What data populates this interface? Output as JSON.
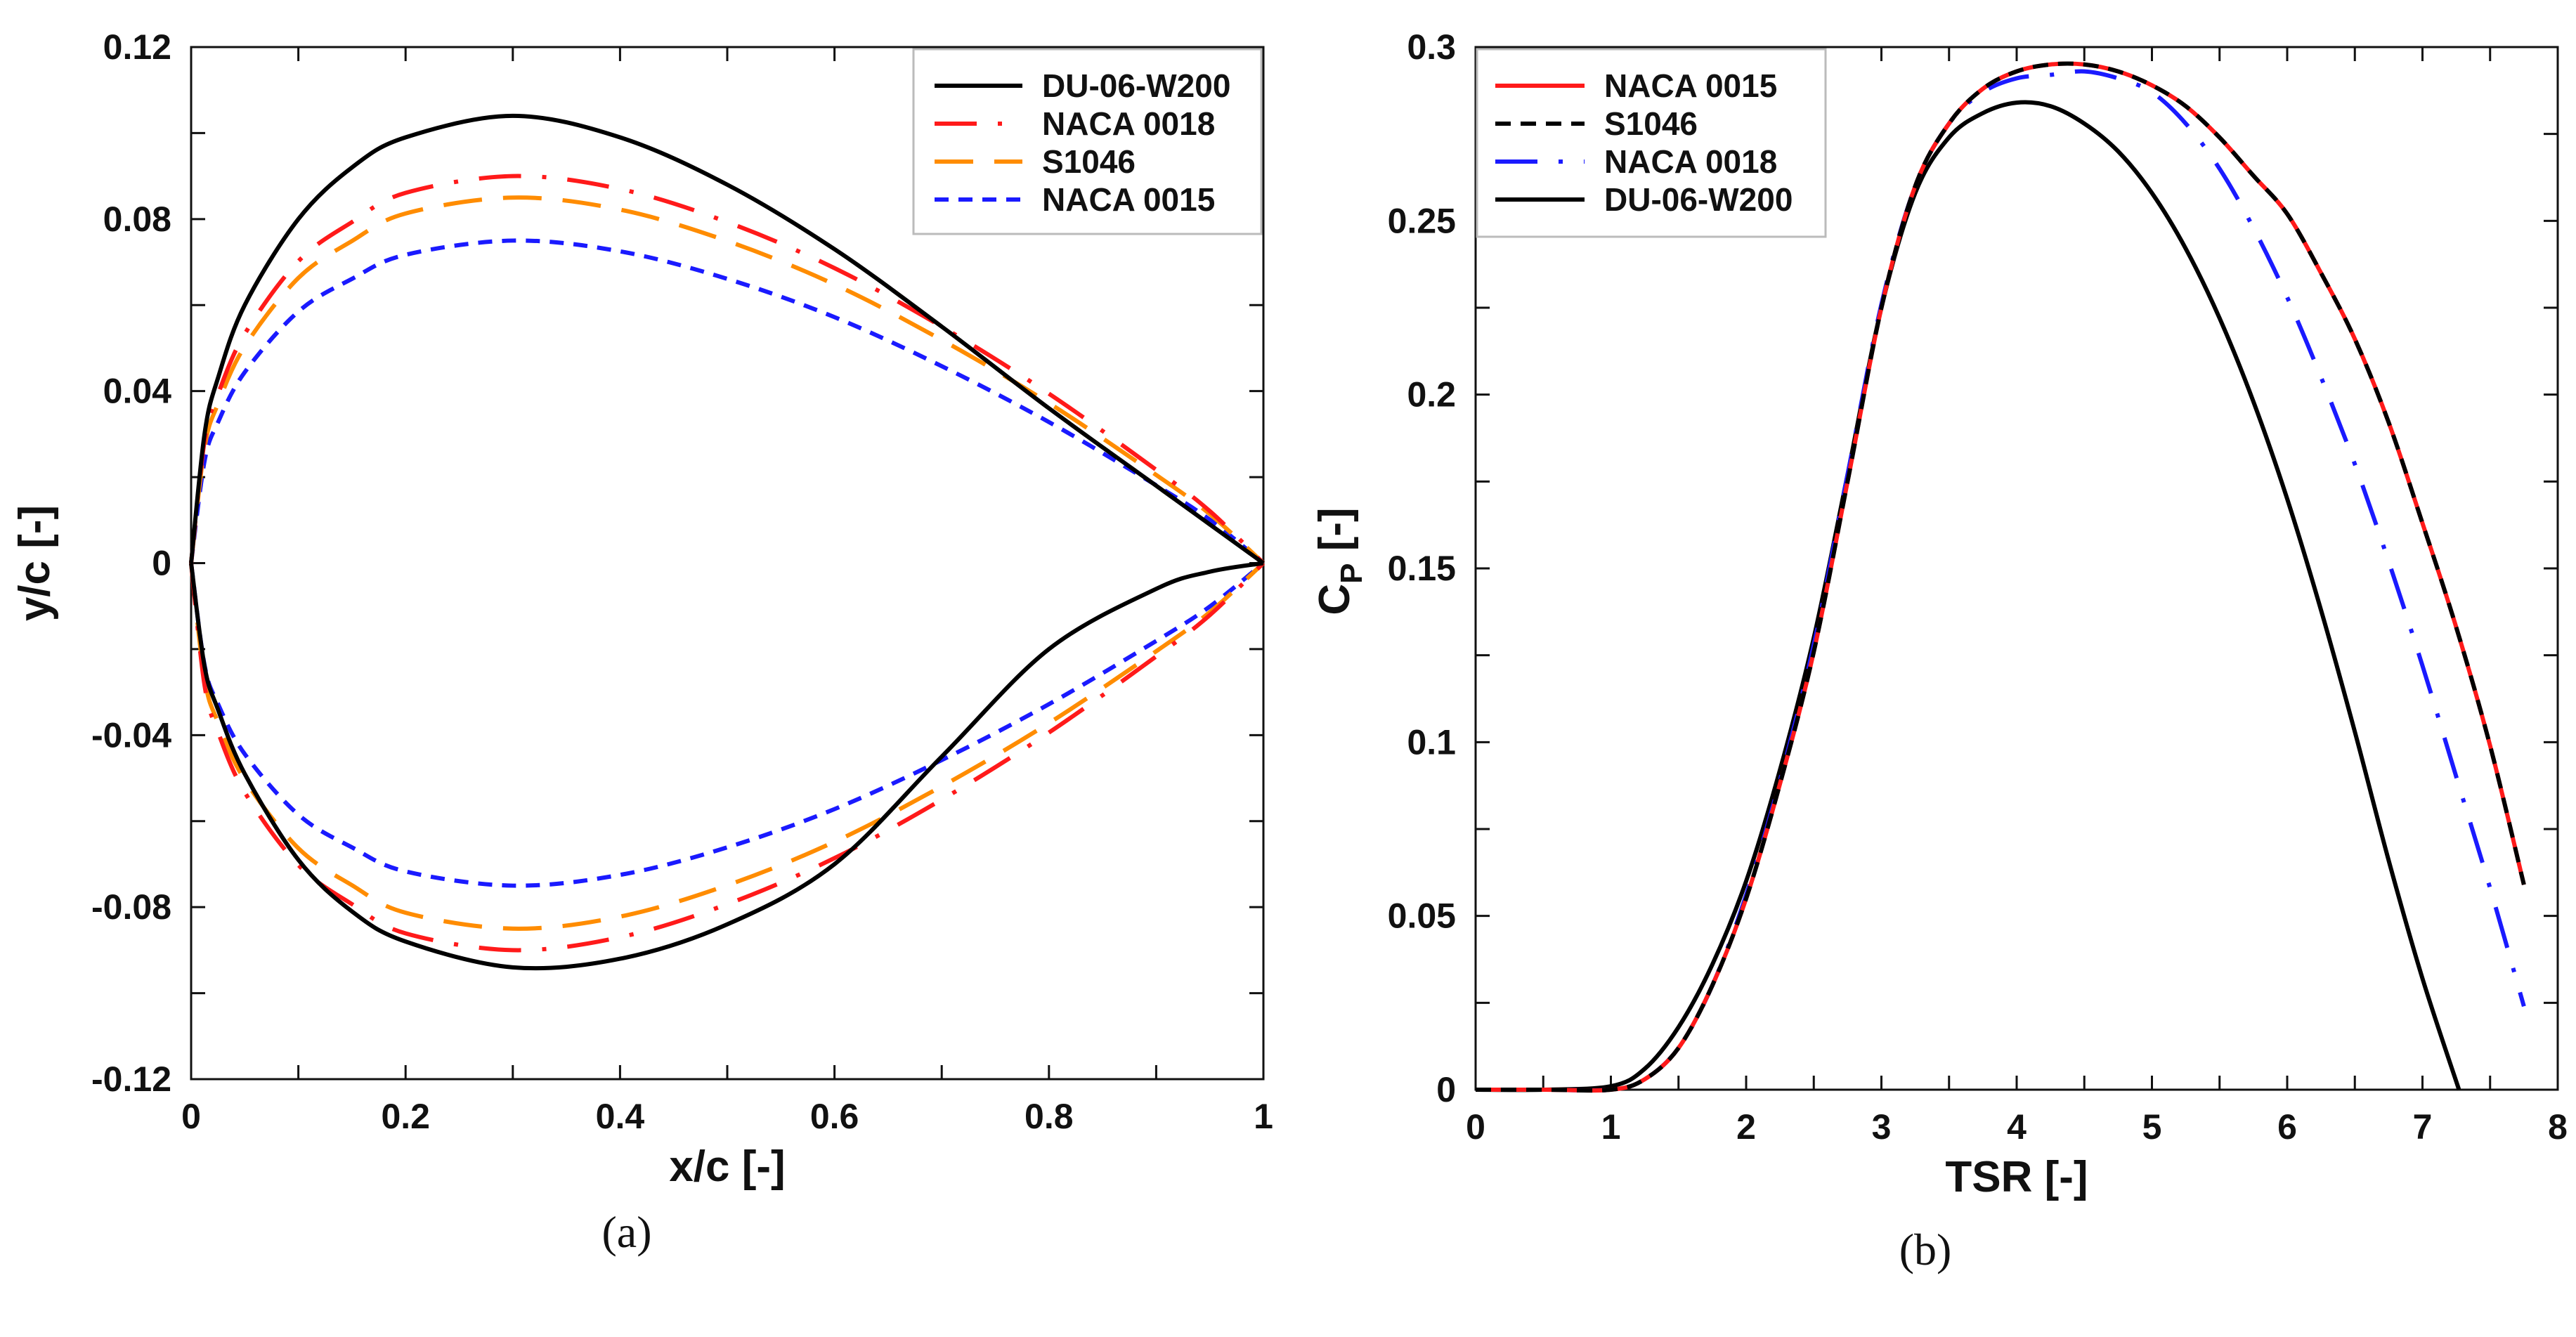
{
  "chart_data": [
    {
      "type": "line",
      "caption": "(a)",
      "xlabel": "x/c [-]",
      "ylabel": "y/c [-]",
      "xlim": [
        0,
        1
      ],
      "ylim": [
        -0.12,
        0.12
      ],
      "xticks": [
        0,
        0.2,
        0.4,
        0.6,
        0.8,
        1
      ],
      "xtick_labels": [
        "0",
        "0.2",
        "0.4",
        "0.6",
        "0.8",
        "1"
      ],
      "yticks": [
        -0.12,
        -0.08,
        -0.04,
        0,
        0.04,
        0.08,
        0.12
      ],
      "ytick_labels": [
        "-0.12",
        "-0.08",
        "-0.04",
        "0",
        "0.04",
        "0.08",
        "0.12"
      ],
      "xminor": 0.1,
      "yminor": 0.02,
      "grid": false,
      "legend_position": "top-right",
      "x": [
        0,
        0.0125,
        0.025,
        0.05,
        0.1,
        0.15,
        0.2,
        0.3,
        0.4,
        0.5,
        0.6,
        0.7,
        0.8,
        0.9,
        0.95,
        1
      ],
      "series": [
        {
          "name": "DU-06-W200",
          "color": "#000000",
          "dash": "solid",
          "upper": [
            0,
            0.03,
            0.043,
            0.06,
            0.08,
            0.092,
            0.099,
            0.104,
            0.099,
            0.088,
            0.073,
            0.055,
            0.036,
            0.018,
            0.009,
            0
          ],
          "lower": [
            0,
            -0.024,
            -0.034,
            -0.049,
            -0.069,
            -0.081,
            -0.088,
            -0.094,
            -0.092,
            -0.084,
            -0.07,
            -0.045,
            -0.02,
            -0.006,
            -0.002,
            0
          ]
        },
        {
          "name": "NACA 0018",
          "color": "#ff1a1a",
          "dash": "dashdot",
          "upper": [
            0,
            0.0284,
            0.0392,
            0.0533,
            0.0702,
            0.0793,
            0.0861,
            0.09,
            0.087,
            0.0793,
            0.0686,
            0.055,
            0.0394,
            0.0217,
            0.0121,
            0
          ],
          "lower": [
            0,
            -0.0284,
            -0.0392,
            -0.0533,
            -0.0702,
            -0.0793,
            -0.0861,
            -0.09,
            -0.087,
            -0.0793,
            -0.0686,
            -0.055,
            -0.0394,
            -0.0217,
            -0.0121,
            0
          ]
        },
        {
          "name": "S1046",
          "color": "#ff8c00",
          "dash": "longdash",
          "upper": [
            0,
            0.0268,
            0.037,
            0.0504,
            0.0663,
            0.0749,
            0.0813,
            0.085,
            0.0822,
            0.0749,
            0.0648,
            0.0519,
            0.0372,
            0.0205,
            0.0114,
            0
          ],
          "lower": [
            0,
            -0.0268,
            -0.037,
            -0.0504,
            -0.0663,
            -0.0749,
            -0.0813,
            -0.085,
            -0.0822,
            -0.0749,
            -0.0648,
            -0.0519,
            -0.0372,
            -0.0205,
            -0.0114,
            0
          ]
        },
        {
          "name": "NACA 0015",
          "color": "#1a1aff",
          "dash": "shortdash",
          "upper": [
            0,
            0.0237,
            0.0327,
            0.0444,
            0.0585,
            0.0661,
            0.0717,
            0.075,
            0.0725,
            0.0661,
            0.0572,
            0.0458,
            0.0328,
            0.0181,
            0.0101,
            0
          ],
          "lower": [
            0,
            -0.0237,
            -0.0327,
            -0.0444,
            -0.0585,
            -0.0661,
            -0.0717,
            -0.075,
            -0.0725,
            -0.0661,
            -0.0572,
            -0.0458,
            -0.0328,
            -0.0181,
            -0.0101,
            0
          ]
        }
      ]
    },
    {
      "type": "line",
      "caption": "(b)",
      "xlabel": "TSR [-]",
      "ylabel": "C",
      "ylabel_sub": "P",
      "ylabel_suffix": " [-]",
      "xlim": [
        0,
        8
      ],
      "ylim": [
        0,
        0.3
      ],
      "xticks": [
        0,
        1,
        2,
        3,
        4,
        5,
        6,
        7,
        8
      ],
      "xtick_labels": [
        "0",
        "1",
        "2",
        "3",
        "4",
        "5",
        "6",
        "7",
        "8"
      ],
      "yticks": [
        0,
        0.05,
        0.1,
        0.15,
        0.2,
        0.25,
        0.3
      ],
      "ytick_labels": [
        "0",
        "0.05",
        "0.1",
        "0.15",
        "0.2",
        "0.25",
        "0.3"
      ],
      "xminor": 0.5,
      "yminor": 0.025,
      "grid": false,
      "legend_position": "top-left",
      "series": [
        {
          "name": "NACA 0015",
          "color": "#ff1a1a",
          "dash": "solid",
          "x": [
            0,
            0.5,
            1,
            1.25,
            1.5,
            1.75,
            2,
            2.25,
            2.5,
            2.75,
            3,
            3.25,
            3.5,
            3.75,
            4,
            4.25,
            4.5,
            4.75,
            5,
            5.25,
            5.5,
            5.75,
            6,
            6.25,
            6.5,
            6.75,
            7,
            7.25,
            7.5,
            7.75
          ],
          "y": [
            0,
            0,
            0,
            0.003,
            0.012,
            0.03,
            0.055,
            0.088,
            0.126,
            0.175,
            0.225,
            0.26,
            0.278,
            0.288,
            0.293,
            0.295,
            0.295,
            0.293,
            0.289,
            0.283,
            0.274,
            0.263,
            0.252,
            0.235,
            0.216,
            0.192,
            0.163,
            0.133,
            0.099,
            0.059
          ]
        },
        {
          "name": "S1046",
          "color": "#000000",
          "dash": "dash",
          "x": [
            0,
            0.5,
            1,
            1.25,
            1.5,
            1.75,
            2,
            2.25,
            2.5,
            2.75,
            3,
            3.25,
            3.5,
            3.75,
            4,
            4.25,
            4.5,
            4.75,
            5,
            5.25,
            5.5,
            5.75,
            6,
            6.25,
            6.5,
            6.75,
            7,
            7.25,
            7.5,
            7.75
          ],
          "y": [
            0,
            0,
            0,
            0.003,
            0.012,
            0.03,
            0.055,
            0.088,
            0.126,
            0.175,
            0.225,
            0.26,
            0.278,
            0.288,
            0.293,
            0.295,
            0.295,
            0.293,
            0.289,
            0.283,
            0.274,
            0.263,
            0.252,
            0.235,
            0.216,
            0.192,
            0.163,
            0.133,
            0.099,
            0.059
          ]
        },
        {
          "name": "NACA 0018",
          "color": "#1a1aff",
          "dash": "dashdot",
          "x": [
            0,
            0.5,
            1,
            1.25,
            1.5,
            1.75,
            2,
            2.25,
            2.5,
            2.75,
            3,
            3.25,
            3.5,
            3.75,
            4,
            4.25,
            4.5,
            4.75,
            5,
            5.25,
            5.5,
            5.75,
            6,
            6.25,
            6.5,
            6.75,
            7,
            7.25,
            7.5,
            7.75
          ],
          "y": [
            0,
            0,
            0,
            0.003,
            0.012,
            0.03,
            0.056,
            0.089,
            0.128,
            0.177,
            0.226,
            0.26,
            0.278,
            0.287,
            0.291,
            0.292,
            0.293,
            0.291,
            0.287,
            0.278,
            0.265,
            0.248,
            0.228,
            0.205,
            0.18,
            0.152,
            0.122,
            0.09,
            0.058,
            0.024
          ]
        },
        {
          "name": "DU-06-W200",
          "color": "#000000",
          "dash": "solid",
          "x": [
            0,
            0.5,
            1,
            1.25,
            1.5,
            1.75,
            2,
            2.25,
            2.5,
            2.75,
            3,
            3.25,
            3.5,
            3.75,
            4,
            4.25,
            4.5,
            4.75,
            5,
            5.25,
            5.5,
            5.75,
            6,
            6.25,
            6.5,
            6.75,
            7,
            7.27
          ],
          "y": [
            0,
            0,
            0.001,
            0.006,
            0.018,
            0.036,
            0.06,
            0.092,
            0.13,
            0.177,
            0.225,
            0.258,
            0.274,
            0.281,
            0.284,
            0.283,
            0.278,
            0.27,
            0.258,
            0.242,
            0.222,
            0.198,
            0.17,
            0.138,
            0.103,
            0.066,
            0.032,
            0
          ]
        }
      ]
    }
  ]
}
